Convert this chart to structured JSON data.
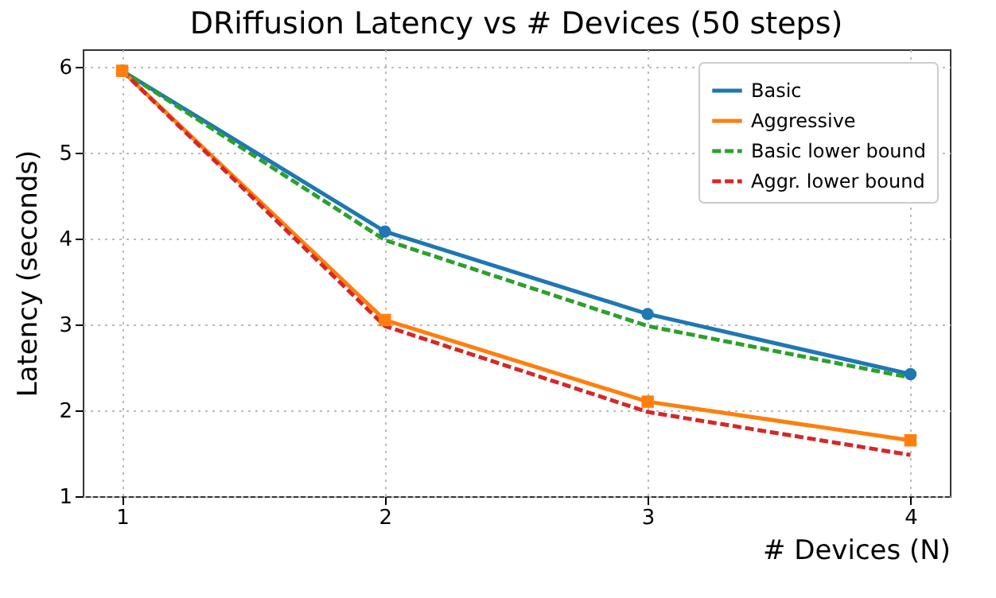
{
  "chart_data": {
    "type": "line",
    "title": "DRiffusion Latency vs # Devices (50 steps)",
    "xlabel": "# Devices (N)",
    "ylabel": "Latency (seconds)",
    "x": [
      1,
      2,
      3,
      4
    ],
    "series": [
      {
        "name": "Basic",
        "color": "#1f77b4",
        "values": [
          5.95,
          4.08,
          3.12,
          2.42
        ],
        "marker": "circle",
        "line_style": "solid"
      },
      {
        "name": "Aggressive",
        "color": "#ff7f0e",
        "values": [
          5.95,
          3.05,
          2.1,
          1.65
        ],
        "marker": "square",
        "line_style": "solid"
      },
      {
        "name": "Basic lower bound",
        "color": "#2ca02c",
        "values": [
          5.95,
          3.98,
          2.98,
          2.38
        ],
        "marker": "none",
        "line_style": "dashed"
      },
      {
        "name": "Aggr. lower bound",
        "color": "#d62728",
        "values": [
          5.95,
          2.98,
          1.98,
          1.48
        ],
        "marker": "none",
        "line_style": "dashed"
      }
    ],
    "xlim": [
      0.85,
      4.15
    ],
    "xticks": [
      1,
      2,
      3,
      4
    ],
    "ylim": [
      1,
      6.2
    ],
    "yticks": [
      1,
      2,
      3,
      4,
      5,
      6
    ],
    "grid": true,
    "legend": "top right"
  }
}
